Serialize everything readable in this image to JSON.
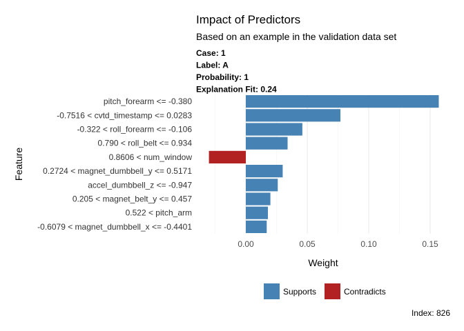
{
  "chart_data": {
    "type": "bar",
    "orientation": "horizontal",
    "title": "Impact of Predictors",
    "subtitle": "Based on an example in the validation data set",
    "case_info": [
      {
        "label": "Case:",
        "value": "1"
      },
      {
        "label": "Label:",
        "value": "A"
      },
      {
        "label": "Probability:",
        "value": "1"
      },
      {
        "label": "Explanation Fit:",
        "value": "0.24"
      }
    ],
    "xlabel": "Weight",
    "ylabel": "Feature",
    "xlim": [
      -0.03,
      0.16
    ],
    "x_ticks": [
      "0.00",
      "0.05",
      "0.10",
      "0.15"
    ],
    "x_tick_values": [
      0,
      0.05,
      0.1,
      0.15
    ],
    "grid": true,
    "legend_position": "bottom",
    "legend": [
      {
        "key": "supports",
        "label": "Supports",
        "color": "#4682B4"
      },
      {
        "key": "contradicts",
        "label": "Contradicts",
        "color": "#B22222"
      }
    ],
    "features": [
      {
        "label": "pitch_forearm <= -0.380",
        "value": 0.157,
        "type": "supports"
      },
      {
        "label": "-0.7516 < cvtd_timestamp <= 0.0283",
        "value": 0.077,
        "type": "supports"
      },
      {
        "label": "-0.322 < roll_forearm <= -0.106",
        "value": 0.046,
        "type": "supports"
      },
      {
        "label": "0.790 < roll_belt <= 0.934",
        "value": 0.034,
        "type": "supports"
      },
      {
        "label": "0.8606 < num_window",
        "value": -0.03,
        "type": "contradicts"
      },
      {
        "label": "0.2724 < magnet_dumbbell_y <= 0.5171",
        "value": 0.03,
        "type": "supports"
      },
      {
        "label": "accel_dumbbell_z <= -0.947",
        "value": 0.026,
        "type": "supports"
      },
      {
        "label": "0.205 < magnet_belt_y <= 0.457",
        "value": 0.02,
        "type": "supports"
      },
      {
        "label": "0.522 < pitch_arm",
        "value": 0.018,
        "type": "supports"
      },
      {
        "label": "-0.6079 < magnet_dumbbell_x <= -0.4401",
        "value": 0.017,
        "type": "supports"
      }
    ],
    "caption": "Index: 826"
  }
}
